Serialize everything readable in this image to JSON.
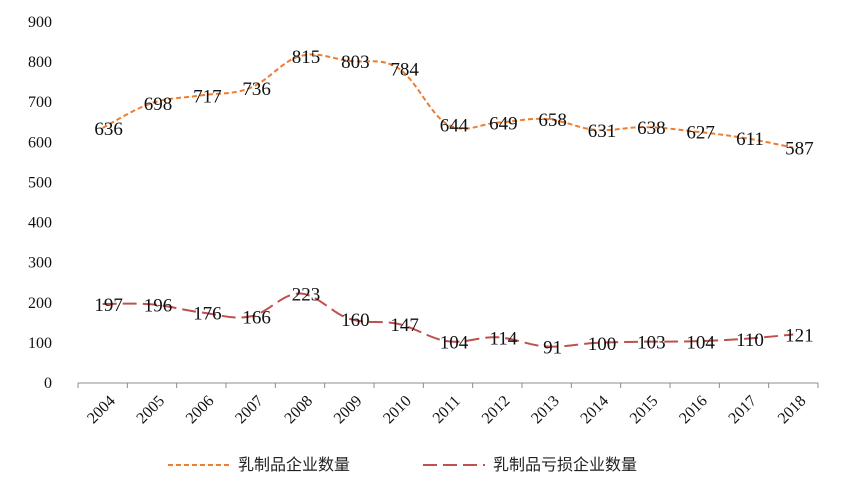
{
  "chart_data": {
    "type": "line",
    "x": [
      "2004",
      "2005",
      "2006",
      "2007",
      "2008",
      "2009",
      "2010",
      "2011",
      "2012",
      "2013",
      "2014",
      "2015",
      "2016",
      "2017",
      "2018"
    ],
    "ylim": [
      0,
      900
    ],
    "yticks": [
      0,
      100,
      200,
      300,
      400,
      500,
      600,
      700,
      800,
      900
    ],
    "grid": false,
    "legend": "bottom",
    "series": [
      {
        "name": "乳制品企业数量",
        "values": [
          636,
          698,
          717,
          736,
          815,
          803,
          784,
          644,
          649,
          658,
          631,
          638,
          627,
          611,
          587
        ],
        "labels": [
          "636",
          "698",
          "717",
          "736",
          "815",
          "803",
          "784",
          "644",
          "649",
          "658",
          "631",
          "638",
          "627",
          "611",
          "587"
        ],
        "color": "#ED7D31",
        "dash": "short-dash"
      },
      {
        "name": "乳制品亏损企业数量",
        "values": [
          197,
          196,
          176,
          166,
          223,
          160,
          147,
          104,
          114,
          91,
          100,
          103,
          104,
          110,
          121
        ],
        "labels": [
          "197",
          "196",
          "176",
          "166",
          "223",
          "160",
          "147",
          "104",
          "114",
          "91",
          "100",
          "103",
          "104",
          "110",
          "121"
        ],
        "color": "#C0504D",
        "dash": "long-dash"
      }
    ]
  }
}
